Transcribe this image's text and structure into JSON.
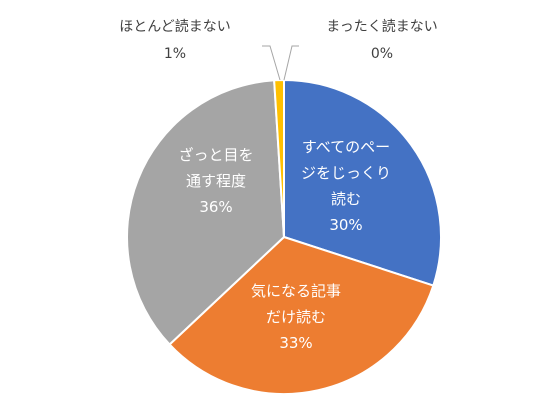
{
  "chart_data": {
    "type": "pie",
    "slices": [
      {
        "label_lines": [
          "すべてのペー",
          "ジをじっくり",
          "読む"
        ],
        "value": 30,
        "value_label": "30%",
        "color": "#4472C4"
      },
      {
        "label_lines": [
          "気になる記事",
          "だけ読む"
        ],
        "value": 33,
        "value_label": "33%",
        "color": "#ED7D31"
      },
      {
        "label_lines": [
          "ざっと目を",
          "通す程度"
        ],
        "value": 36,
        "value_label": "36%",
        "color": "#A5A5A5"
      },
      {
        "label_lines": [
          "ほとんど読まない"
        ],
        "value": 1,
        "value_label": "1%",
        "color": "#FFC000"
      },
      {
        "label_lines": [
          "まったく読まない"
        ],
        "value": 0,
        "value_label": "0%",
        "color": "#5B9BD5"
      }
    ],
    "start": "12 o'clock",
    "direction": "clockwise",
    "legend": "none"
  }
}
